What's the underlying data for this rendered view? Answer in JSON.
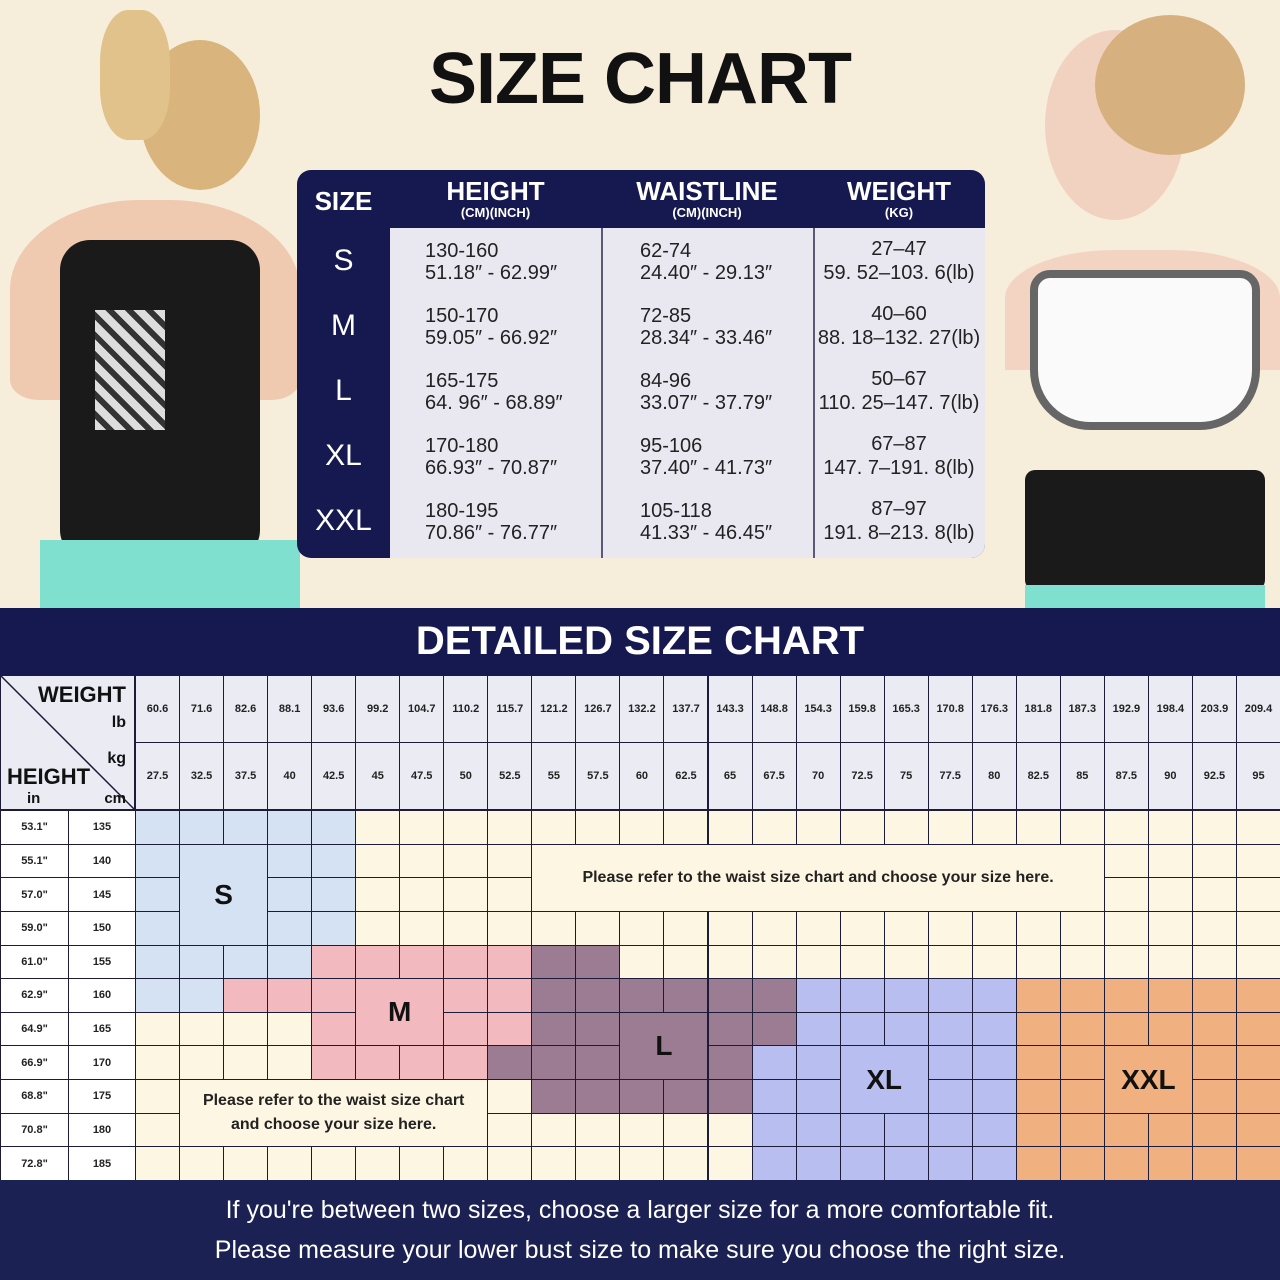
{
  "title": "SIZE CHART",
  "size_table": {
    "headers": [
      {
        "main": "SIZE",
        "sub": ""
      },
      {
        "main": "HEIGHT",
        "sub": "(CM)(INCH)"
      },
      {
        "main": "WAISTLINE",
        "sub": "(CM)(INCH)"
      },
      {
        "main": "WEIGHT",
        "sub": "(KG)"
      }
    ],
    "rows": [
      {
        "size": "S",
        "height_cm": "130-160",
        "height_in": "51.18″ - 62.99″",
        "waist_cm": "62-74",
        "waist_in": "24.40″ - 29.13″",
        "weight_kg": "27–47",
        "weight_lb": "59. 52–103. 6(lb)"
      },
      {
        "size": "M",
        "height_cm": "150-170",
        "height_in": "59.05″ - 66.92″",
        "waist_cm": "72-85",
        "waist_in": "28.34″ - 33.46″",
        "weight_kg": "40–60",
        "weight_lb": "88. 18–132. 27(lb)"
      },
      {
        "size": "L",
        "height_cm": "165-175",
        "height_in": "64. 96″ -  68.89″",
        "waist_cm": "84-96",
        "waist_in": "33.07″ - 37.79″",
        "weight_kg": "50–67",
        "weight_lb": "110. 25–147. 7(lb)"
      },
      {
        "size": "XL",
        "height_cm": "170-180",
        "height_in": "66.93″ - 70.87″",
        "waist_cm": "95-106",
        "waist_in": "37.40″ - 41.73″",
        "weight_kg": "67–87",
        "weight_lb": "147. 7–191. 8(lb)"
      },
      {
        "size": "XXL",
        "height_cm": "180-195",
        "height_in": "70.86″ - 76.77″",
        "waist_cm": "105-118",
        "waist_in": "41.33″ - 46.45″",
        "weight_kg": "87–97",
        "weight_lb": "191. 8–213. 8(lb)"
      }
    ]
  },
  "detailed": {
    "title": "DETAILED SIZE CHART",
    "corner": {
      "weight": "WEIGHT",
      "lb": "lb",
      "kg": "kg",
      "height": "HEIGHT",
      "in": "in",
      "cm": "cm"
    },
    "weights_lb": [
      "60.6",
      "71.6",
      "82.6",
      "88.1",
      "93.6",
      "99.2",
      "104.7",
      "110.2",
      "115.7",
      "121.2",
      "126.7",
      "132.2",
      "137.7",
      "143.3",
      "148.8",
      "154.3",
      "159.8",
      "165.3",
      "170.8",
      "176.3",
      "181.8",
      "187.3",
      "192.9",
      "198.4",
      "203.9",
      "209.4"
    ],
    "weights_kg": [
      "27.5",
      "32.5",
      "37.5",
      "40",
      "42.5",
      "45",
      "47.5",
      "50",
      "52.5",
      "55",
      "57.5",
      "60",
      "62.5",
      "65",
      "67.5",
      "70",
      "72.5",
      "75",
      "77.5",
      "80",
      "82.5",
      "85",
      "87.5",
      "90",
      "92.5",
      "95"
    ],
    "heights_in": [
      "53.1\"",
      "55.1\"",
      "57.0\"",
      "59.0\"",
      "61.0\"",
      "62.9\"",
      "64.9\"",
      "66.9\"",
      "68.8\"",
      "70.8\"",
      "72.8\""
    ],
    "heights_cm": [
      "135",
      "140",
      "145",
      "150",
      "155",
      "160",
      "165",
      "170",
      "175",
      "180",
      "185"
    ],
    "size_map": [
      "SSSSS.....................",
      "SSSSS.....................",
      "SSSSS.....................",
      "SSSSS.....................",
      "SSSSMMMMMLL...............",
      "SSMMMMMMMLLLLLLXXXXXYYYYYY",
      "....MMMMMLLLLLLXXXXXYYYYYY",
      "....MMMMLLLLLLXXXXXXYYYYYY",
      ".........LLLLLXXXXXXYYYYYY",
      "..............XXXXXXYYYYYY",
      "..............XXXXXXYYYYYY"
    ],
    "size_codes": {
      "S": "S",
      "M": "M",
      "L": "L",
      "X": "XL",
      "Y": "XXL"
    },
    "colors": {
      "S": "#d4e2f4",
      "M": "#f2b9be",
      "L": "#9b7c93",
      "X": "#b9bef0",
      "Y": "#f0b07f",
      ".": "#fdf6e3"
    },
    "labels": [
      {
        "text": "S",
        "code": "S",
        "rows": [
          1,
          3
        ],
        "cols": [
          1,
          2
        ]
      },
      {
        "text": "M",
        "code": "M",
        "rows": [
          5,
          6
        ],
        "cols": [
          5,
          6
        ]
      },
      {
        "text": "L",
        "code": "L",
        "rows": [
          6,
          7
        ],
        "cols": [
          11,
          12
        ]
      },
      {
        "text": "XL",
        "code": "X",
        "rows": [
          7,
          8
        ],
        "cols": [
          16,
          17
        ]
      },
      {
        "text": "XXL",
        "code": "Y",
        "rows": [
          7,
          8
        ],
        "cols": [
          22,
          23
        ]
      }
    ],
    "notes": [
      {
        "lines": [
          "Please refer to the waist size chart and choose your size here."
        ],
        "rows": [
          1,
          2
        ],
        "cols": [
          9,
          21
        ]
      },
      {
        "lines": [
          "Please refer to the waist size chart",
          "and choose your size here."
        ],
        "rows": [
          8,
          9
        ],
        "cols": [
          1,
          7
        ]
      }
    ]
  },
  "footer": {
    "line1": "If you're between two sizes, choose a larger size for a more comfortable fit.",
    "line2": "Please measure your lower bust size to make sure you choose the right size."
  },
  "colors": {
    "navy": "#15194f",
    "cream": "#f6eedb"
  }
}
